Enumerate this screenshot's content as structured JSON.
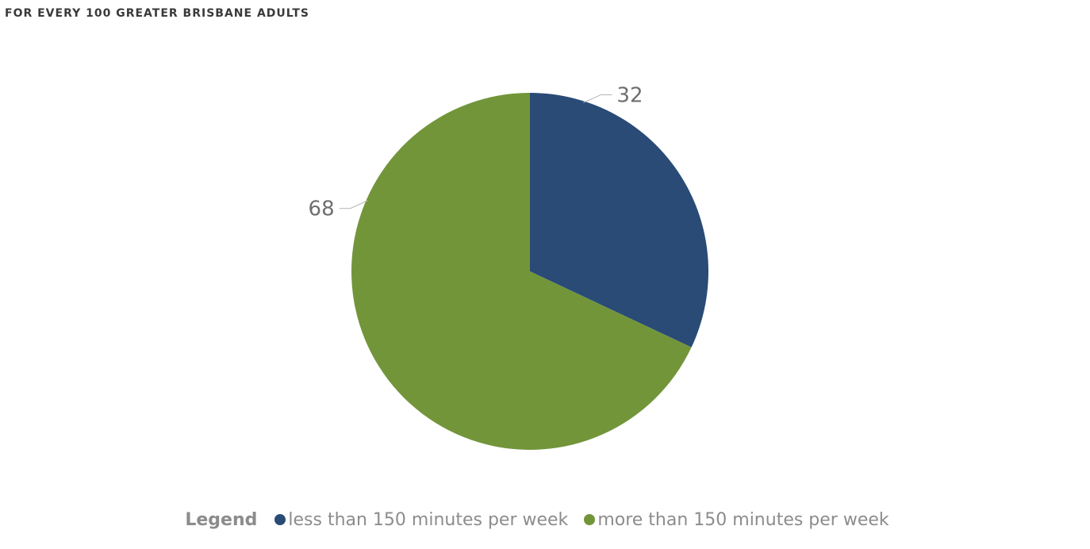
{
  "chart_data": {
    "type": "pie",
    "title": "FOR EVERY 100 GREATER BRISBANE ADULTS",
    "slices": [
      {
        "label": "less than 150 minutes per week",
        "value": 32,
        "color": "#294b76"
      },
      {
        "label": "more than 150 minutes per week",
        "value": 68,
        "color": "#72953a"
      }
    ],
    "legend": {
      "title": "Legend",
      "placement": "bottom"
    }
  }
}
